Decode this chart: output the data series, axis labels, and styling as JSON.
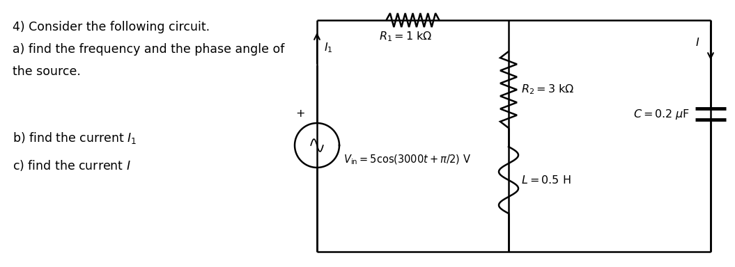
{
  "title_text": "4) Consider the following circuit.",
  "line1": "a) find the frequency and the phase angle of",
  "line2": "the source.",
  "line3": "b) find the current $I_1$",
  "line4": "c) find the current $I$",
  "bg_color": "#ffffff",
  "text_color": "#000000",
  "R1_label": "$R_1 = 1$ k$\\Omega$",
  "R2_label": "$R_2 = 3$ k$\\Omega$",
  "C_label": "$C = 0.2$ $\\mu$F",
  "L_label": "$L = 0.5$ H",
  "Vs_label": "$V_{\\mathrm{in}} = 5\\cos(3000t + \\pi/2)$ V",
  "I1_label": "$I_1$",
  "I_label": "$I$",
  "font_size": 12.5,
  "lw": 1.8
}
